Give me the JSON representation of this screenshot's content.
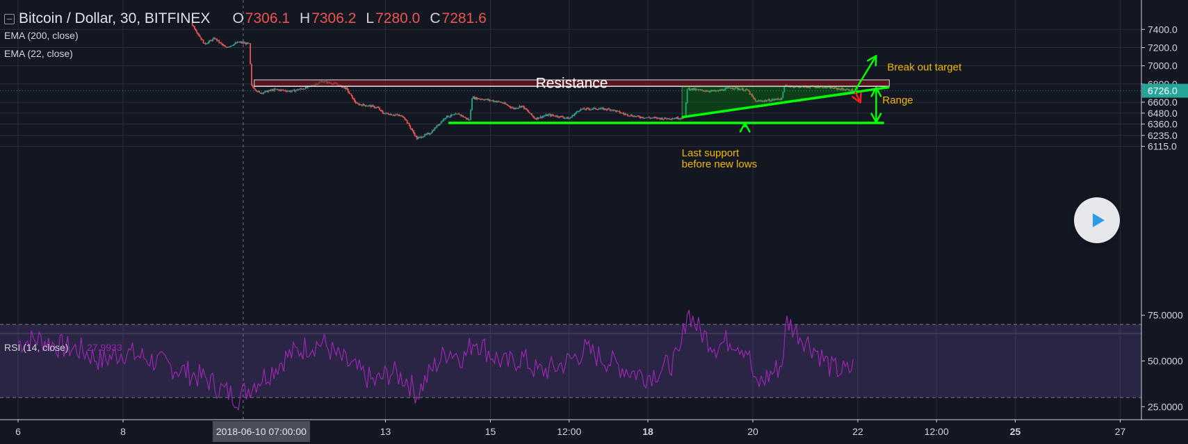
{
  "header": {
    "symbol": "Bitcoin / Dollar, 30, BITFINEX",
    "ohlc": [
      {
        "k": "O",
        "v": "7306.1"
      },
      {
        "k": "H",
        "v": "7306.2"
      },
      {
        "k": "L",
        "v": "7280.0"
      },
      {
        "k": "C",
        "v": "7281.6"
      }
    ]
  },
  "indicators": [
    "EMA (200, close)",
    "EMA (22, close)"
  ],
  "rsi": {
    "label": "RSI (14, close)",
    "value": "27.9933",
    "levels": [
      70,
      30
    ]
  },
  "colors": {
    "background": "#131722",
    "grid": "#2a2e39",
    "up": "#26a69a",
    "down": "#ef5350",
    "annotation": "#00ff00",
    "label": "#f5b800",
    "rsi": "#9c27b0",
    "price_tag": "#26a69a"
  },
  "chart_data": {
    "type": "candlestick",
    "price_axis": {
      "ticks": [
        {
          "label": "7400.0",
          "value": 7400
        },
        {
          "label": "7200.0",
          "value": 7200
        },
        {
          "label": "7000.0",
          "value": 7000
        },
        {
          "label": "6800.0",
          "value": 6800
        },
        {
          "label": "6600.0",
          "value": 6600
        },
        {
          "label": "6480.0",
          "value": 6480
        },
        {
          "label": "6360.0",
          "value": 6360
        },
        {
          "label": "6235.0",
          "value": 6235
        },
        {
          "label": "6115.0",
          "value": 6115
        }
      ],
      "current": {
        "label": "6726.0",
        "value": 6726
      }
    },
    "rsi_axis": {
      "ticks": [
        {
          "label": "75.0000",
          "value": 75
        },
        {
          "label": "50.0000",
          "value": 50
        },
        {
          "label": "25.0000",
          "value": 25
        }
      ]
    },
    "time_axis": {
      "ticks": [
        {
          "label": "6",
          "day": 6,
          "bold": false
        },
        {
          "label": "8",
          "day": 8,
          "bold": false
        },
        {
          "label": "13",
          "day": 13,
          "bold": false
        },
        {
          "label": "15",
          "day": 15,
          "bold": false
        },
        {
          "label": "12:00",
          "day": 16.5,
          "bold": false
        },
        {
          "label": "18",
          "day": 18,
          "bold": true
        },
        {
          "label": "20",
          "day": 20,
          "bold": false
        },
        {
          "label": "22",
          "day": 22,
          "bold": false
        },
        {
          "label": "12:00",
          "day": 23.5,
          "bold": false
        },
        {
          "label": "25",
          "day": 25,
          "bold": true
        },
        {
          "label": "27",
          "day": 27,
          "bold": false
        }
      ],
      "crosshair": {
        "label": "2018-06-10 07:00:00",
        "day": 10.29
      }
    },
    "price_path": [
      [
        9.3,
        7470
      ],
      [
        9.55,
        7240
      ],
      [
        9.75,
        7300
      ],
      [
        9.95,
        7200
      ],
      [
        10.2,
        7260
      ],
      [
        10.4,
        7240
      ],
      [
        10.45,
        6780
      ],
      [
        10.6,
        6700
      ],
      [
        10.9,
        6740
      ],
      [
        11.2,
        6720
      ],
      [
        11.5,
        6760
      ],
      [
        11.8,
        6830
      ],
      [
        12.05,
        6800
      ],
      [
        12.25,
        6750
      ],
      [
        12.45,
        6580
      ],
      [
        12.7,
        6560
      ],
      [
        12.85,
        6540
      ],
      [
        12.95,
        6480
      ],
      [
        13.2,
        6460
      ],
      [
        13.35,
        6440
      ],
      [
        13.6,
        6200
      ],
      [
        13.85,
        6260
      ],
      [
        14.15,
        6440
      ],
      [
        14.4,
        6470
      ],
      [
        14.6,
        6400
      ],
      [
        14.65,
        6650
      ],
      [
        14.9,
        6630
      ],
      [
        15.2,
        6600
      ],
      [
        15.45,
        6530
      ],
      [
        15.6,
        6560
      ],
      [
        15.85,
        6420
      ],
      [
        16.1,
        6460
      ],
      [
        16.35,
        6440
      ],
      [
        16.5,
        6420
      ],
      [
        16.7,
        6520
      ],
      [
        17.0,
        6530
      ],
      [
        17.3,
        6520
      ],
      [
        17.55,
        6470
      ],
      [
        17.8,
        6440
      ],
      [
        18.0,
        6430
      ],
      [
        18.3,
        6420
      ],
      [
        18.7,
        6430
      ],
      [
        18.75,
        6750
      ],
      [
        19.0,
        6730
      ],
      [
        19.3,
        6720
      ],
      [
        19.6,
        6760
      ],
      [
        19.9,
        6730
      ],
      [
        20.05,
        6610
      ],
      [
        20.3,
        6620
      ],
      [
        20.55,
        6640
      ],
      [
        20.6,
        6780
      ],
      [
        20.9,
        6770
      ],
      [
        21.3,
        6770
      ],
      [
        21.6,
        6750
      ],
      [
        21.9,
        6730
      ],
      [
        21.95,
        6726
      ]
    ],
    "rsi_series": [
      [
        6.0,
        60
      ],
      [
        6.4,
        62
      ],
      [
        6.8,
        58
      ],
      [
        7.2,
        56
      ],
      [
        7.6,
        50
      ],
      [
        8.0,
        55
      ],
      [
        8.4,
        52
      ],
      [
        8.8,
        48
      ],
      [
        9.2,
        44
      ],
      [
        9.6,
        40
      ],
      [
        9.9,
        34
      ],
      [
        10.2,
        30
      ],
      [
        10.5,
        38
      ],
      [
        10.8,
        44
      ],
      [
        11.1,
        52
      ],
      [
        11.5,
        58
      ],
      [
        11.8,
        60
      ],
      [
        12.1,
        52
      ],
      [
        12.5,
        44
      ],
      [
        12.8,
        38
      ],
      [
        13.1,
        44
      ],
      [
        13.4,
        40
      ],
      [
        13.6,
        32
      ],
      [
        13.9,
        46
      ],
      [
        14.2,
        56
      ],
      [
        14.5,
        52
      ],
      [
        14.7,
        62
      ],
      [
        15.0,
        54
      ],
      [
        15.3,
        48
      ],
      [
        15.6,
        52
      ],
      [
        15.9,
        44
      ],
      [
        16.2,
        46
      ],
      [
        16.5,
        50
      ],
      [
        16.8,
        56
      ],
      [
        17.1,
        52
      ],
      [
        17.4,
        48
      ],
      [
        17.7,
        44
      ],
      [
        18.0,
        42
      ],
      [
        18.3,
        46
      ],
      [
        18.6,
        52
      ],
      [
        18.75,
        78
      ],
      [
        19.0,
        66
      ],
      [
        19.3,
        58
      ],
      [
        19.6,
        62
      ],
      [
        19.9,
        56
      ],
      [
        20.05,
        36
      ],
      [
        20.3,
        42
      ],
      [
        20.55,
        48
      ],
      [
        20.65,
        72
      ],
      [
        20.9,
        64
      ],
      [
        21.2,
        56
      ],
      [
        21.5,
        46
      ],
      [
        21.8,
        44
      ],
      [
        21.95,
        48
      ]
    ],
    "annotations": [
      {
        "name": "resistance",
        "type": "zone",
        "label": "Resistance",
        "day_start": 10.5,
        "day_end": 22.6,
        "price_top": 6845,
        "price_bottom": 6775
      },
      {
        "name": "support",
        "type": "line",
        "day_start": 14.2,
        "day_end": 22.5,
        "price": 6372
      },
      {
        "name": "trendline",
        "type": "line",
        "day_start": 18.65,
        "price_start": 6435,
        "day_end": 22.6,
        "price_end": 6765
      },
      {
        "name": "consolidation-triangle",
        "type": "shape",
        "points": [
          [
            18.65,
            6435
          ],
          [
            18.65,
            6770
          ],
          [
            22.0,
            6770
          ],
          [
            22.0,
            6700
          ]
        ]
      },
      {
        "name": "breakout-arrow",
        "type": "arrow",
        "from": [
          21.95,
          6730
        ],
        "to": [
          22.35,
          7110
        ],
        "label": "Break out target"
      },
      {
        "name": "breakdown-arrow",
        "type": "arrow",
        "from": [
          21.95,
          6716
        ],
        "to": [
          22.05,
          6595
        ],
        "color": "#ff1a1a"
      },
      {
        "name": "range-arrow",
        "type": "double-arrow",
        "day": 22.35,
        "price_top": 6760,
        "price_bottom": 6380,
        "label": "Range"
      },
      {
        "name": "support-arrow",
        "type": "arrow",
        "from": [
          19.85,
          6325
        ],
        "to": [
          19.85,
          6370
        ],
        "label": "Last support\nbefore new lows"
      }
    ]
  }
}
